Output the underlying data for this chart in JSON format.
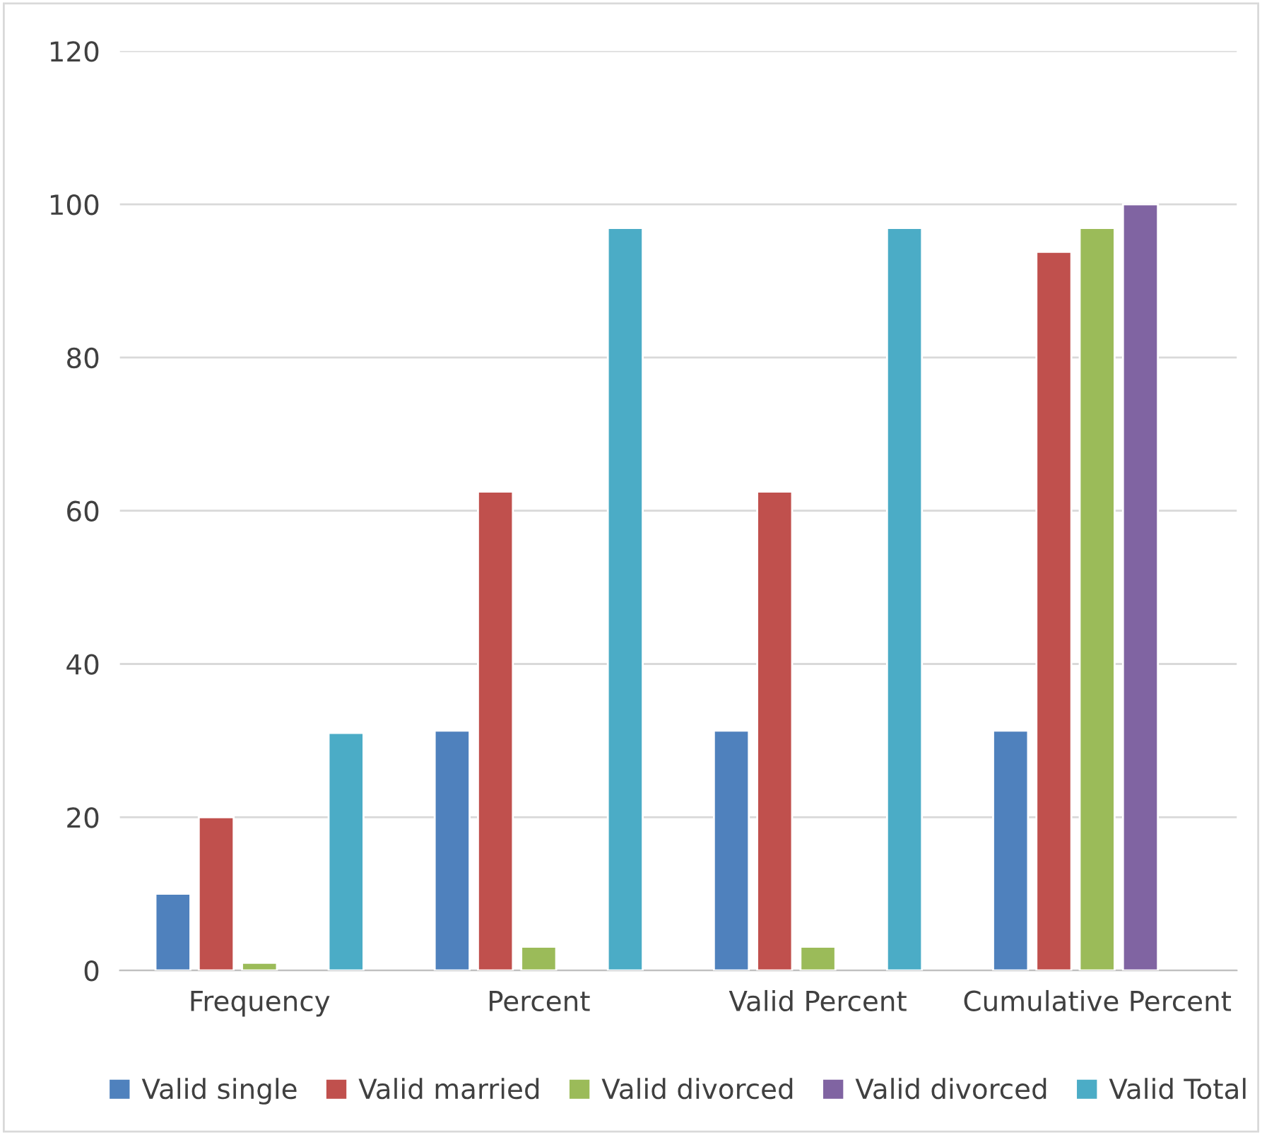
{
  "chart_data": {
    "type": "bar",
    "categories": [
      "Frequency",
      "Percent",
      "Valid Percent",
      "Cumulative Percent"
    ],
    "series": [
      {
        "name": "Valid single",
        "color": "#4f81bd",
        "values": [
          10,
          31.3,
          31.3,
          31.3
        ]
      },
      {
        "name": "Valid married",
        "color": "#c0504d",
        "values": [
          20,
          62.5,
          62.5,
          93.8
        ]
      },
      {
        "name": "Valid divorced",
        "color": "#9bbb59",
        "values": [
          1,
          3.1,
          3.1,
          96.9
        ]
      },
      {
        "name": "Valid divorced",
        "color": "#8064a2",
        "values": [
          null,
          null,
          null,
          100
        ]
      },
      {
        "name": "Valid Total",
        "color": "#4bacc6",
        "values": [
          31,
          96.9,
          96.9,
          null
        ]
      }
    ],
    "ylim": [
      0,
      120
    ],
    "yticks": [
      0,
      20,
      40,
      60,
      80,
      100,
      120
    ],
    "grid": "y",
    "legend": "bottom"
  }
}
